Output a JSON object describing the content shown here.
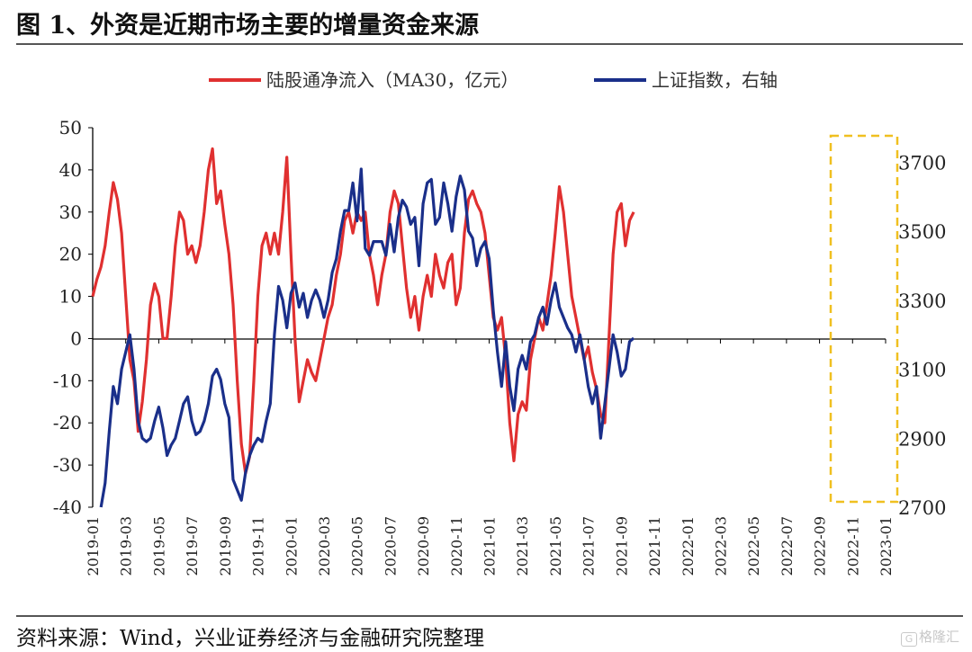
{
  "header": {
    "title": "图 1、外资是近期市场主要的增量资金来源"
  },
  "footer": {
    "source": "资料来源：Wind，兴业证券经济与金融研究院整理",
    "watermark": "格隆汇"
  },
  "colors": {
    "red": "#e03030",
    "blue": "#1a2f8a",
    "highlight": "#f0c020"
  },
  "chart_data": {
    "type": "line",
    "legend": [
      "陆股通净流入（MA30，亿元）",
      "上证指数，右轴"
    ],
    "legend_position": "top",
    "y_left": {
      "ticks": [
        50,
        40,
        30,
        20,
        10,
        0,
        -10,
        -20,
        -30,
        -40
      ],
      "range": [
        -40,
        50
      ]
    },
    "y_right": {
      "ticks": [
        3700,
        3500,
        3300,
        3100,
        2900,
        2700
      ],
      "range": [
        2700,
        3800
      ]
    },
    "x_ticks": [
      "2019-01",
      "2019-03",
      "2019-05",
      "2019-07",
      "2019-09",
      "2019-11",
      "2020-01",
      "2020-03",
      "2020-05",
      "2020-07",
      "2020-09",
      "2020-11",
      "2021-01",
      "2021-03",
      "2021-05",
      "2021-07",
      "2021-09",
      "2021-11",
      "2022-01",
      "2022-03",
      "2022-05",
      "2022-07",
      "2022-09",
      "2022-11",
      "2023-01"
    ],
    "highlight_range": [
      "2022-10",
      "2023-01"
    ],
    "series": [
      {
        "name": "陆股通净流入（MA30，亿元）",
        "axis": "left",
        "points": [
          [
            0,
            10
          ],
          [
            0.25,
            14
          ],
          [
            0.5,
            17
          ],
          [
            0.75,
            22
          ],
          [
            1.0,
            30
          ],
          [
            1.25,
            37
          ],
          [
            1.5,
            33
          ],
          [
            1.75,
            25
          ],
          [
            2.0,
            10
          ],
          [
            2.25,
            -5
          ],
          [
            2.5,
            -10
          ],
          [
            2.75,
            -22
          ],
          [
            3.0,
            -15
          ],
          [
            3.25,
            -5
          ],
          [
            3.5,
            8
          ],
          [
            3.75,
            13
          ],
          [
            4.0,
            10
          ],
          [
            4.25,
            0
          ],
          [
            4.5,
            0
          ],
          [
            4.75,
            10
          ],
          [
            5.0,
            22
          ],
          [
            5.25,
            30
          ],
          [
            5.5,
            28
          ],
          [
            5.75,
            20
          ],
          [
            6.0,
            22
          ],
          [
            6.25,
            18
          ],
          [
            6.5,
            22
          ],
          [
            6.75,
            30
          ],
          [
            7.0,
            40
          ],
          [
            7.25,
            45
          ],
          [
            7.5,
            32
          ],
          [
            7.75,
            35
          ],
          [
            8.0,
            27
          ],
          [
            8.25,
            20
          ],
          [
            8.5,
            8
          ],
          [
            8.75,
            -10
          ],
          [
            9.0,
            -25
          ],
          [
            9.25,
            -32
          ],
          [
            9.5,
            -28
          ],
          [
            9.75,
            -10
          ],
          [
            10.0,
            10
          ],
          [
            10.25,
            22
          ],
          [
            10.5,
            25
          ],
          [
            10.75,
            20
          ],
          [
            11.0,
            25
          ],
          [
            11.25,
            20
          ],
          [
            11.5,
            30
          ],
          [
            11.75,
            43
          ],
          [
            12.0,
            20
          ],
          [
            12.25,
            0
          ],
          [
            12.5,
            -15
          ],
          [
            12.75,
            -10
          ],
          [
            13.0,
            -5
          ],
          [
            13.25,
            -8
          ],
          [
            13.5,
            -10
          ],
          [
            13.75,
            -5
          ],
          [
            14.0,
            0
          ],
          [
            14.25,
            5
          ],
          [
            14.5,
            8
          ],
          [
            14.75,
            15
          ],
          [
            15.0,
            20
          ],
          [
            15.25,
            28
          ],
          [
            15.5,
            30
          ],
          [
            15.75,
            25
          ],
          [
            16.0,
            30
          ],
          [
            16.25,
            28
          ],
          [
            16.5,
            30
          ],
          [
            16.75,
            20
          ],
          [
            17.0,
            15
          ],
          [
            17.25,
            8
          ],
          [
            17.5,
            15
          ],
          [
            17.75,
            20
          ],
          [
            18.0,
            30
          ],
          [
            18.25,
            35
          ],
          [
            18.5,
            32
          ],
          [
            18.75,
            22
          ],
          [
            19.0,
            12
          ],
          [
            19.25,
            5
          ],
          [
            19.5,
            10
          ],
          [
            19.75,
            2
          ],
          [
            20.0,
            10
          ],
          [
            20.25,
            15
          ],
          [
            20.5,
            10
          ],
          [
            20.75,
            20
          ],
          [
            21.0,
            15
          ],
          [
            21.25,
            12
          ],
          [
            21.5,
            18
          ],
          [
            21.75,
            20
          ],
          [
            22.0,
            8
          ],
          [
            22.25,
            12
          ],
          [
            22.5,
            25
          ],
          [
            22.75,
            33
          ],
          [
            23.0,
            35
          ],
          [
            23.25,
            32
          ],
          [
            23.5,
            30
          ],
          [
            23.75,
            25
          ],
          [
            24.0,
            15
          ],
          [
            24.25,
            5
          ],
          [
            24.5,
            2
          ],
          [
            24.75,
            5
          ],
          [
            25.0,
            -5
          ],
          [
            25.25,
            -20
          ],
          [
            25.5,
            -29
          ],
          [
            25.75,
            -18
          ],
          [
            26.0,
            -15
          ],
          [
            26.25,
            -17
          ],
          [
            26.5,
            -5
          ],
          [
            26.75,
            0
          ],
          [
            27.0,
            5
          ],
          [
            27.25,
            2
          ],
          [
            27.5,
            8
          ],
          [
            27.75,
            15
          ],
          [
            28.0,
            25
          ],
          [
            28.25,
            36
          ],
          [
            28.5,
            30
          ],
          [
            28.75,
            20
          ],
          [
            29.0,
            10
          ],
          [
            29.25,
            5
          ],
          [
            29.5,
            0
          ],
          [
            29.75,
            -5
          ],
          [
            30.0,
            -2
          ],
          [
            30.25,
            -8
          ],
          [
            30.5,
            -12
          ],
          [
            30.75,
            -18
          ],
          [
            31.0,
            -20
          ],
          [
            31.25,
            0
          ],
          [
            31.5,
            20
          ],
          [
            31.75,
            30
          ],
          [
            32.0,
            32
          ],
          [
            32.25,
            22
          ],
          [
            32.5,
            28
          ],
          [
            32.75,
            30
          ]
        ]
      },
      {
        "name": "上证指数，右轴",
        "axis": "right",
        "points": [
          [
            0.5,
            2700
          ],
          [
            0.75,
            2770
          ],
          [
            1.0,
            2920
          ],
          [
            1.25,
            3050
          ],
          [
            1.5,
            3000
          ],
          [
            1.75,
            3100
          ],
          [
            2.0,
            3150
          ],
          [
            2.25,
            3200
          ],
          [
            2.5,
            3100
          ],
          [
            2.75,
            2950
          ],
          [
            3.0,
            2900
          ],
          [
            3.25,
            2890
          ],
          [
            3.5,
            2900
          ],
          [
            3.75,
            2950
          ],
          [
            4.0,
            2990
          ],
          [
            4.25,
            2930
          ],
          [
            4.5,
            2850
          ],
          [
            4.75,
            2880
          ],
          [
            5.0,
            2900
          ],
          [
            5.25,
            2950
          ],
          [
            5.5,
            3000
          ],
          [
            5.75,
            3020
          ],
          [
            6.0,
            2950
          ],
          [
            6.25,
            2910
          ],
          [
            6.5,
            2920
          ],
          [
            6.75,
            2950
          ],
          [
            7.0,
            3000
          ],
          [
            7.25,
            3080
          ],
          [
            7.5,
            3100
          ],
          [
            7.75,
            3070
          ],
          [
            8.0,
            3000
          ],
          [
            8.25,
            2960
          ],
          [
            8.5,
            2780
          ],
          [
            8.75,
            2750
          ],
          [
            9.0,
            2720
          ],
          [
            9.25,
            2800
          ],
          [
            9.5,
            2850
          ],
          [
            9.75,
            2880
          ],
          [
            10.0,
            2900
          ],
          [
            10.25,
            2890
          ],
          [
            10.5,
            2950
          ],
          [
            10.75,
            3000
          ],
          [
            11.0,
            3200
          ],
          [
            11.25,
            3340
          ],
          [
            11.5,
            3300
          ],
          [
            11.75,
            3220
          ],
          [
            12.0,
            3320
          ],
          [
            12.25,
            3350
          ],
          [
            12.5,
            3280
          ],
          [
            12.75,
            3320
          ],
          [
            13.0,
            3250
          ],
          [
            13.25,
            3300
          ],
          [
            13.5,
            3330
          ],
          [
            13.75,
            3300
          ],
          [
            14.0,
            3250
          ],
          [
            14.25,
            3300
          ],
          [
            14.5,
            3380
          ],
          [
            14.75,
            3420
          ],
          [
            15.0,
            3500
          ],
          [
            15.25,
            3560
          ],
          [
            15.5,
            3560
          ],
          [
            15.75,
            3640
          ],
          [
            16.0,
            3530
          ],
          [
            16.25,
            3680
          ],
          [
            16.5,
            3450
          ],
          [
            16.75,
            3430
          ],
          [
            17.0,
            3470
          ],
          [
            17.25,
            3470
          ],
          [
            17.5,
            3470
          ],
          [
            17.75,
            3430
          ],
          [
            18.0,
            3520
          ],
          [
            18.25,
            3440
          ],
          [
            18.5,
            3540
          ],
          [
            18.75,
            3590
          ],
          [
            19.0,
            3570
          ],
          [
            19.25,
            3520
          ],
          [
            19.5,
            3540
          ],
          [
            19.75,
            3400
          ],
          [
            20.0,
            3580
          ],
          [
            20.25,
            3640
          ],
          [
            20.5,
            3650
          ],
          [
            20.75,
            3520
          ],
          [
            21.0,
            3540
          ],
          [
            21.25,
            3640
          ],
          [
            21.5,
            3580
          ],
          [
            21.75,
            3500
          ],
          [
            22.0,
            3600
          ],
          [
            22.25,
            3660
          ],
          [
            22.5,
            3620
          ],
          [
            22.75,
            3500
          ],
          [
            23.0,
            3480
          ],
          [
            23.25,
            3400
          ],
          [
            23.5,
            3450
          ],
          [
            23.75,
            3470
          ],
          [
            24.0,
            3420
          ],
          [
            24.25,
            3270
          ],
          [
            24.5,
            3150
          ],
          [
            24.75,
            3050
          ],
          [
            25.0,
            3180
          ],
          [
            25.25,
            3050
          ],
          [
            25.5,
            2980
          ],
          [
            25.75,
            3100
          ],
          [
            26.0,
            3140
          ],
          [
            26.25,
            3100
          ],
          [
            26.5,
            3180
          ],
          [
            26.75,
            3200
          ],
          [
            27.0,
            3250
          ],
          [
            27.25,
            3280
          ],
          [
            27.5,
            3230
          ],
          [
            27.75,
            3300
          ],
          [
            28.0,
            3350
          ],
          [
            28.25,
            3280
          ],
          [
            28.5,
            3250
          ],
          [
            28.75,
            3220
          ],
          [
            29.0,
            3200
          ],
          [
            29.25,
            3150
          ],
          [
            29.5,
            3200
          ],
          [
            29.75,
            3130
          ],
          [
            30.0,
            3050
          ],
          [
            30.25,
            3000
          ],
          [
            30.5,
            3050
          ],
          [
            30.75,
            2900
          ],
          [
            31.0,
            3000
          ],
          [
            31.25,
            3100
          ],
          [
            31.5,
            3200
          ],
          [
            31.75,
            3150
          ],
          [
            32.0,
            3080
          ],
          [
            32.25,
            3100
          ],
          [
            32.5,
            3180
          ],
          [
            32.75,
            3190
          ]
        ]
      }
    ]
  }
}
